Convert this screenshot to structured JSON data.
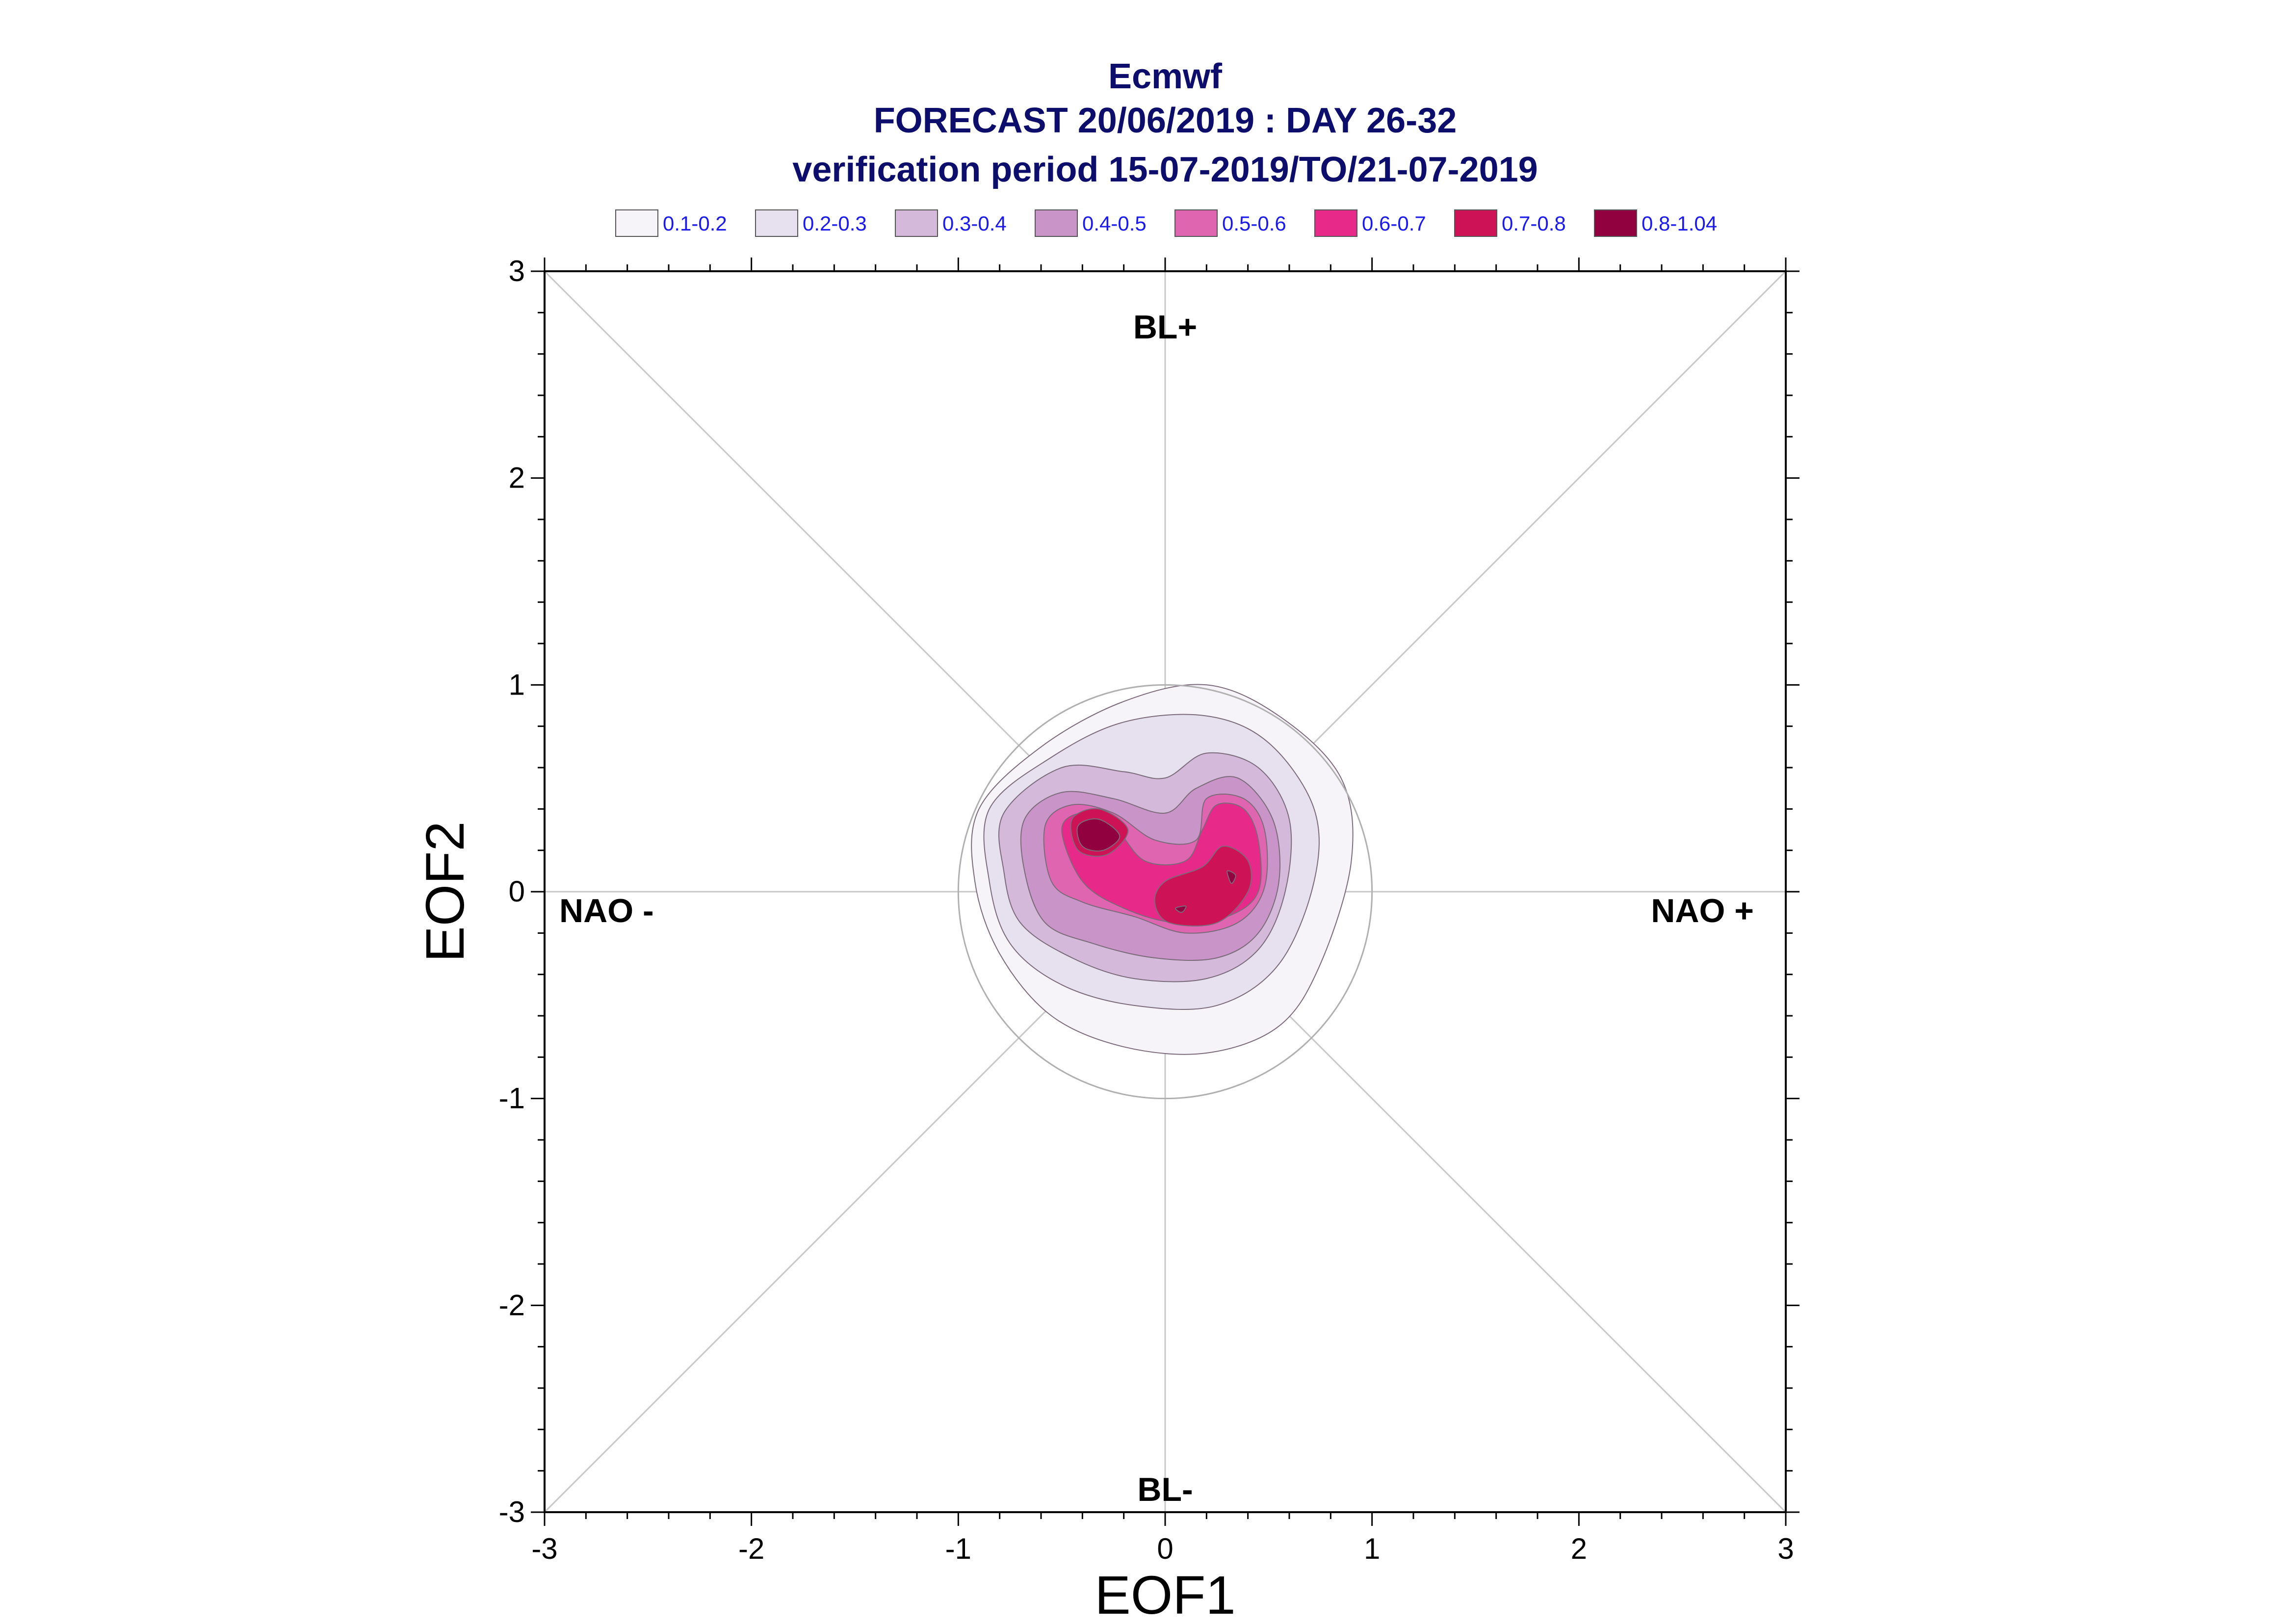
{
  "chart_data": {
    "type": "contour",
    "title": "Ecmwf",
    "subtitle_1": "FORECAST 20/06/2019 : DAY 26-32",
    "subtitle_2": "verification period 15-07-2019/TO/21-07-2019",
    "xlabel": "EOF1",
    "ylabel": "EOF2",
    "xlim": [
      -3,
      3
    ],
    "ylim": [
      -3,
      3
    ],
    "x_ticks": [
      "-3",
      "-2",
      "-1",
      "0",
      "1",
      "2",
      "3"
    ],
    "y_ticks": [
      "3",
      "2",
      "1",
      "0",
      "-1",
      "-2",
      "-3"
    ],
    "regime_labels": {
      "top": "BL+",
      "bottom": "BL-",
      "left": "NAO -",
      "right": "NAO +"
    },
    "reference_circle_radius": 1.0,
    "legend": [
      {
        "label": "0.1-0.2",
        "color": "#f7f4f9"
      },
      {
        "label": "0.2-0.3",
        "color": "#e7e1ef"
      },
      {
        "label": "0.3-0.4",
        "color": "#d4b9da"
      },
      {
        "label": "0.4-0.5",
        "color": "#c994c7"
      },
      {
        "label": "0.5-0.6",
        "color": "#df65b0"
      },
      {
        "label": "0.6-0.7",
        "color": "#e7298a"
      },
      {
        "label": "0.7-0.8",
        "color": "#ce1256"
      },
      {
        "label": "0.8-1.04",
        "color": "#91003f"
      }
    ],
    "density_levels": [
      {
        "range": "0.1-0.2",
        "color": "#f7f4f9",
        "outline": [
          [
            -0.9,
            0.4
          ],
          [
            -0.6,
            0.7
          ],
          [
            -0.2,
            0.92
          ],
          [
            0.2,
            1.0
          ],
          [
            0.55,
            0.85
          ],
          [
            0.85,
            0.55
          ],
          [
            0.9,
            0.15
          ],
          [
            0.75,
            -0.35
          ],
          [
            0.55,
            -0.65
          ],
          [
            0.2,
            -0.78
          ],
          [
            -0.2,
            -0.75
          ],
          [
            -0.55,
            -0.6
          ],
          [
            -0.8,
            -0.3
          ],
          [
            -0.92,
            0.05
          ]
        ]
      },
      {
        "range": "0.2-0.3",
        "color": "#e7e1ef",
        "outline": [
          [
            -0.85,
            0.4
          ],
          [
            -0.55,
            0.65
          ],
          [
            -0.2,
            0.82
          ],
          [
            0.2,
            0.85
          ],
          [
            0.5,
            0.72
          ],
          [
            0.72,
            0.4
          ],
          [
            0.72,
            0.05
          ],
          [
            0.55,
            -0.35
          ],
          [
            0.25,
            -0.55
          ],
          [
            -0.15,
            -0.55
          ],
          [
            -0.5,
            -0.45
          ],
          [
            -0.75,
            -0.25
          ],
          [
            -0.85,
            0.05
          ]
        ]
      },
      {
        "range": "0.3-0.4",
        "color": "#d4b9da",
        "outline": [
          [
            -0.78,
            0.38
          ],
          [
            -0.5,
            0.6
          ],
          [
            -0.2,
            0.58
          ],
          [
            0.0,
            0.55
          ],
          [
            0.2,
            0.67
          ],
          [
            0.45,
            0.6
          ],
          [
            0.6,
            0.35
          ],
          [
            0.58,
            0.0
          ],
          [
            0.45,
            -0.28
          ],
          [
            0.2,
            -0.42
          ],
          [
            -0.15,
            -0.42
          ],
          [
            -0.45,
            -0.32
          ],
          [
            -0.7,
            -0.15
          ],
          [
            -0.78,
            0.1
          ]
        ]
      },
      {
        "range": "0.4-0.5",
        "color": "#c994c7",
        "outline": [
          [
            -0.68,
            0.35
          ],
          [
            -0.5,
            0.48
          ],
          [
            -0.25,
            0.45
          ],
          [
            0.0,
            0.38
          ],
          [
            0.15,
            0.5
          ],
          [
            0.35,
            0.55
          ],
          [
            0.52,
            0.35
          ],
          [
            0.55,
            0.05
          ],
          [
            0.45,
            -0.2
          ],
          [
            0.25,
            -0.32
          ],
          [
            -0.05,
            -0.32
          ],
          [
            -0.35,
            -0.25
          ],
          [
            -0.58,
            -0.15
          ],
          [
            -0.68,
            0.1
          ]
        ]
      },
      {
        "range": "0.5-0.6",
        "color": "#df65b0",
        "outline": [
          [
            -0.58,
            0.32
          ],
          [
            -0.45,
            0.42
          ],
          [
            -0.25,
            0.38
          ],
          [
            -0.05,
            0.25
          ],
          [
            0.15,
            0.25
          ],
          [
            0.2,
            0.45
          ],
          [
            0.38,
            0.45
          ],
          [
            0.48,
            0.3
          ],
          [
            0.48,
            0.02
          ],
          [
            0.35,
            -0.15
          ],
          [
            0.1,
            -0.2
          ],
          [
            -0.15,
            -0.12
          ],
          [
            -0.4,
            -0.05
          ],
          [
            -0.55,
            0.05
          ]
        ]
      },
      {
        "range": "0.6-0.7",
        "color": "#e7298a",
        "outline": [
          [
            -0.5,
            0.3
          ],
          [
            -0.4,
            0.38
          ],
          [
            -0.25,
            0.32
          ],
          [
            -0.1,
            0.15
          ],
          [
            0.1,
            0.15
          ],
          [
            0.18,
            0.3
          ],
          [
            0.25,
            0.42
          ],
          [
            0.38,
            0.4
          ],
          [
            0.45,
            0.25
          ],
          [
            0.45,
            0.0
          ],
          [
            0.3,
            -0.12
          ],
          [
            0.05,
            -0.15
          ],
          [
            -0.2,
            -0.08
          ],
          [
            -0.4,
            0.05
          ]
        ]
      },
      {
        "range": "0.7-0.8",
        "color": "#ce1256",
        "outline": [
          [
            -0.45,
            0.35
          ],
          [
            -0.32,
            0.4
          ],
          [
            -0.18,
            0.3
          ],
          [
            -0.28,
            0.18
          ],
          [
            -0.42,
            0.2
          ]
        ]
      },
      {
        "range": "0.7-0.8",
        "color": "#ce1256",
        "outline": [
          [
            0.0,
            0.05
          ],
          [
            0.18,
            0.12
          ],
          [
            0.28,
            0.22
          ],
          [
            0.4,
            0.15
          ],
          [
            0.4,
            0.0
          ],
          [
            0.25,
            -0.15
          ],
          [
            0.02,
            -0.15
          ],
          [
            -0.05,
            -0.05
          ]
        ]
      },
      {
        "range": "0.8-1.04",
        "color": "#91003f",
        "outline": [
          [
            -0.42,
            0.32
          ],
          [
            -0.32,
            0.35
          ],
          [
            -0.22,
            0.27
          ],
          [
            -0.3,
            0.2
          ],
          [
            -0.4,
            0.22
          ]
        ]
      },
      {
        "range": "0.8-1.04",
        "color": "#91003f",
        "outline": [
          [
            0.3,
            0.1
          ],
          [
            0.34,
            0.08
          ],
          [
            0.32,
            0.04
          ]
        ]
      },
      {
        "range": "0.8-1.04",
        "color": "#91003f",
        "outline": [
          [
            0.05,
            -0.08
          ],
          [
            0.1,
            -0.07
          ],
          [
            0.08,
            -0.1
          ]
        ]
      }
    ]
  }
}
